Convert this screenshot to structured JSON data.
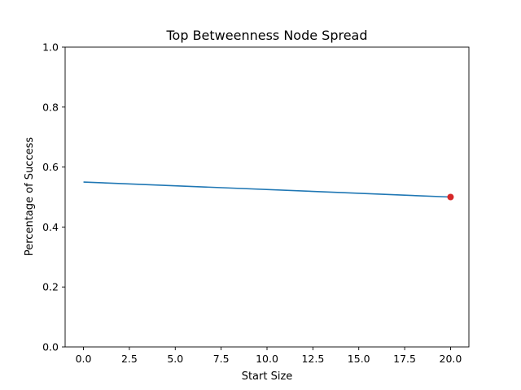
{
  "chart_data": {
    "type": "line",
    "title": "Top Betweenness Node Spread",
    "xlabel": "Start Size",
    "ylabel": "Percentage of Success",
    "xlim": [
      -1,
      21
    ],
    "ylim": [
      0,
      1.0
    ],
    "xticks": [
      "0.0",
      "2.5",
      "5.0",
      "7.5",
      "10.0",
      "12.5",
      "15.0",
      "17.5",
      "20.0"
    ],
    "yticks": [
      "0.0",
      "0.2",
      "0.4",
      "0.6",
      "0.8",
      "1.0"
    ],
    "grid": false,
    "series": [
      {
        "x": [
          0,
          20
        ],
        "y": [
          0.55,
          0.5
        ],
        "color": "#1f77b4"
      }
    ],
    "markers": [
      {
        "x": 20,
        "y": 0.5,
        "color": "#d62728"
      }
    ]
  }
}
